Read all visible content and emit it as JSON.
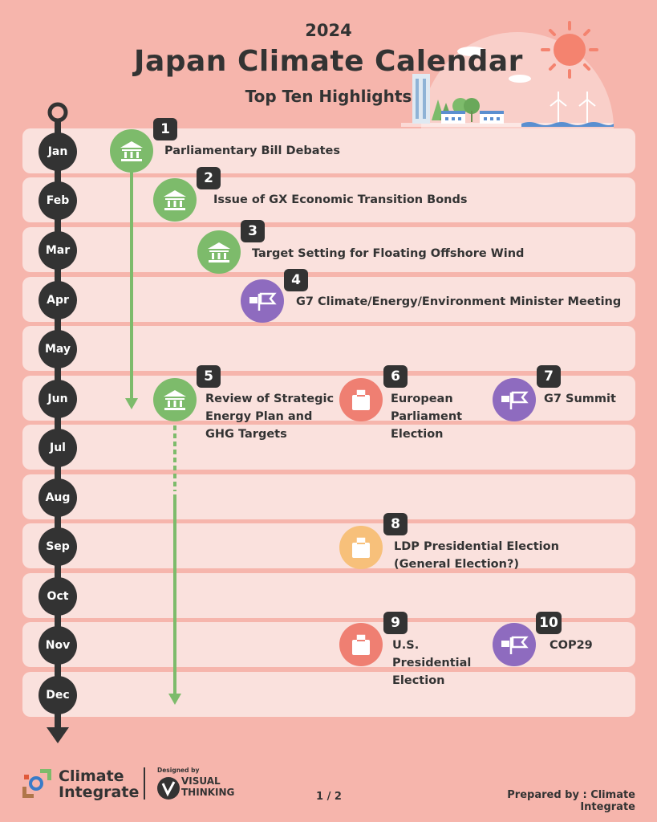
{
  "header": {
    "year": "2024",
    "title": "Japan Climate Calendar",
    "subtitle": "Top Ten Highlights"
  },
  "months": [
    "Jan",
    "Feb",
    "Mar",
    "Apr",
    "May",
    "Jun",
    "Jul",
    "Aug",
    "Sep",
    "Oct",
    "Nov",
    "Dec"
  ],
  "events": [
    {
      "number": "1",
      "label": "Parliamentary Bill Debates",
      "icon": "government-building-icon",
      "color": "#7dbb6b"
    },
    {
      "number": "2",
      "label": "Issue of GX Economic Transition Bonds",
      "icon": "government-building-icon",
      "color": "#7dbb6b"
    },
    {
      "number": "3",
      "label": "Target Setting for Floating Offshore Wind",
      "icon": "government-building-icon",
      "color": "#7dbb6b"
    },
    {
      "number": "4",
      "label": "G7 Climate/Energy/Environment Minister Meeting",
      "icon": "flags-icon",
      "color": "#8e6bbf"
    },
    {
      "number": "5",
      "label": "Review of Strategic\nEnergy Plan and\nGHG Targets",
      "icon": "government-building-icon",
      "color": "#7dbb6b"
    },
    {
      "number": "6",
      "label": "European\nParliament\nElection",
      "icon": "ballot-box-icon",
      "color": "#ef7f72"
    },
    {
      "number": "7",
      "label": "G7 Summit",
      "icon": "flags-icon",
      "color": "#8e6bbf"
    },
    {
      "number": "8",
      "label": "LDP Presidential Election\n (General Election?)",
      "icon": "ballot-box-icon",
      "color": "#f7c07a"
    },
    {
      "number": "9",
      "label": "U.S.\nPresidential\nElection",
      "icon": "ballot-box-icon",
      "color": "#ef7f72"
    },
    {
      "number": "10",
      "label": "COP29",
      "icon": "flags-icon",
      "color": "#8e6bbf"
    }
  ],
  "footer": {
    "org_line1": "Climate",
    "org_line2": "Integrate",
    "designed_by": "Designed by",
    "designer_line1": "VISUAL",
    "designer_line2": "THINKING",
    "page": "1 / 2",
    "prepared_by": "Prepared by : Climate Integrate"
  }
}
